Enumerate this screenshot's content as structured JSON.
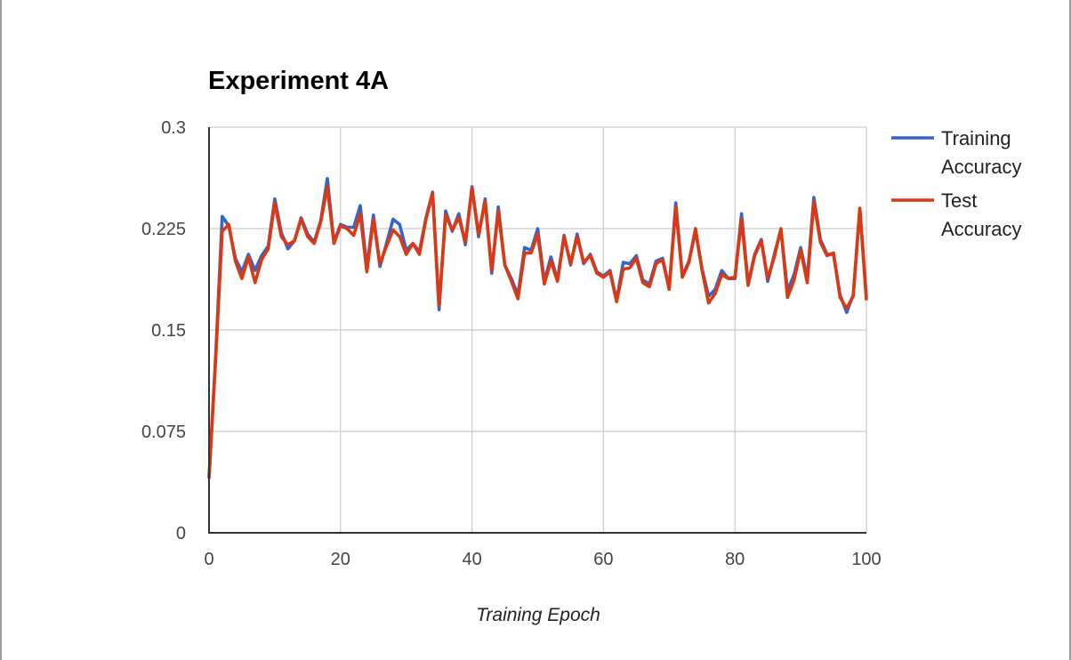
{
  "chart_data": {
    "type": "line",
    "title": "Experiment 4A",
    "xlabel": "Training Epoch",
    "ylabel": "",
    "xlim": [
      0,
      100
    ],
    "ylim": [
      0,
      0.3
    ],
    "x_ticks": [
      "0",
      "20",
      "40",
      "60",
      "80",
      "100"
    ],
    "y_ticks": [
      "0",
      "0.075",
      "0.15",
      "0.225",
      "0.3"
    ],
    "grid": true,
    "legend_position": "right",
    "x": [
      0,
      1,
      2,
      3,
      4,
      5,
      6,
      7,
      8,
      9,
      10,
      11,
      12,
      13,
      14,
      15,
      16,
      17,
      18,
      19,
      20,
      21,
      22,
      23,
      24,
      25,
      26,
      27,
      28,
      29,
      30,
      31,
      32,
      33,
      34,
      35,
      36,
      37,
      38,
      39,
      40,
      41,
      42,
      43,
      44,
      45,
      46,
      47,
      48,
      49,
      50,
      51,
      52,
      53,
      54,
      55,
      56,
      57,
      58,
      59,
      60,
      61,
      62,
      63,
      64,
      65,
      66,
      67,
      68,
      69,
      70,
      71,
      72,
      73,
      74,
      75,
      76,
      77,
      78,
      79,
      80,
      81,
      82,
      83,
      84,
      85,
      86,
      87,
      88,
      89,
      90,
      91,
      92,
      93,
      94,
      95,
      96,
      97,
      98,
      99,
      100
    ],
    "series": [
      {
        "name": "Training Accuracy",
        "color": "#3366cc",
        "values": [
          0.041,
          0.13,
          0.234,
          0.227,
          0.203,
          0.193,
          0.206,
          0.194,
          0.205,
          0.212,
          0.247,
          0.222,
          0.21,
          0.216,
          0.233,
          0.221,
          0.215,
          0.231,
          0.262,
          0.215,
          0.228,
          0.226,
          0.226,
          0.242,
          0.196,
          0.235,
          0.197,
          0.214,
          0.232,
          0.228,
          0.209,
          0.214,
          0.208,
          0.233,
          0.252,
          0.165,
          0.238,
          0.223,
          0.236,
          0.213,
          0.256,
          0.219,
          0.247,
          0.192,
          0.241,
          0.198,
          0.188,
          0.176,
          0.211,
          0.209,
          0.225,
          0.186,
          0.204,
          0.187,
          0.22,
          0.198,
          0.221,
          0.199,
          0.206,
          0.193,
          0.19,
          0.194,
          0.172,
          0.2,
          0.199,
          0.205,
          0.187,
          0.184,
          0.201,
          0.203,
          0.181,
          0.244,
          0.19,
          0.201,
          0.223,
          0.195,
          0.175,
          0.18,
          0.194,
          0.188,
          0.188,
          0.236,
          0.184,
          0.206,
          0.217,
          0.186,
          0.206,
          0.224,
          0.179,
          0.191,
          0.211,
          0.188,
          0.248,
          0.217,
          0.206,
          0.206,
          0.176,
          0.163,
          0.176,
          0.24,
          0.174
        ]
      },
      {
        "name": "Test Accuracy",
        "color": "#dc3912",
        "values": [
          0.04,
          0.128,
          0.223,
          0.228,
          0.201,
          0.188,
          0.204,
          0.185,
          0.202,
          0.21,
          0.244,
          0.219,
          0.213,
          0.216,
          0.232,
          0.219,
          0.214,
          0.23,
          0.256,
          0.214,
          0.227,
          0.225,
          0.22,
          0.236,
          0.193,
          0.232,
          0.199,
          0.212,
          0.224,
          0.219,
          0.206,
          0.214,
          0.206,
          0.232,
          0.251,
          0.168,
          0.235,
          0.224,
          0.233,
          0.215,
          0.255,
          0.221,
          0.245,
          0.194,
          0.238,
          0.198,
          0.186,
          0.173,
          0.207,
          0.207,
          0.221,
          0.184,
          0.201,
          0.186,
          0.219,
          0.199,
          0.219,
          0.2,
          0.205,
          0.192,
          0.189,
          0.193,
          0.171,
          0.195,
          0.196,
          0.203,
          0.185,
          0.182,
          0.199,
          0.202,
          0.18,
          0.241,
          0.189,
          0.2,
          0.225,
          0.194,
          0.17,
          0.177,
          0.191,
          0.188,
          0.189,
          0.232,
          0.183,
          0.205,
          0.216,
          0.188,
          0.204,
          0.225,
          0.174,
          0.187,
          0.209,
          0.185,
          0.245,
          0.215,
          0.205,
          0.207,
          0.174,
          0.166,
          0.175,
          0.24,
          0.172
        ]
      }
    ]
  }
}
